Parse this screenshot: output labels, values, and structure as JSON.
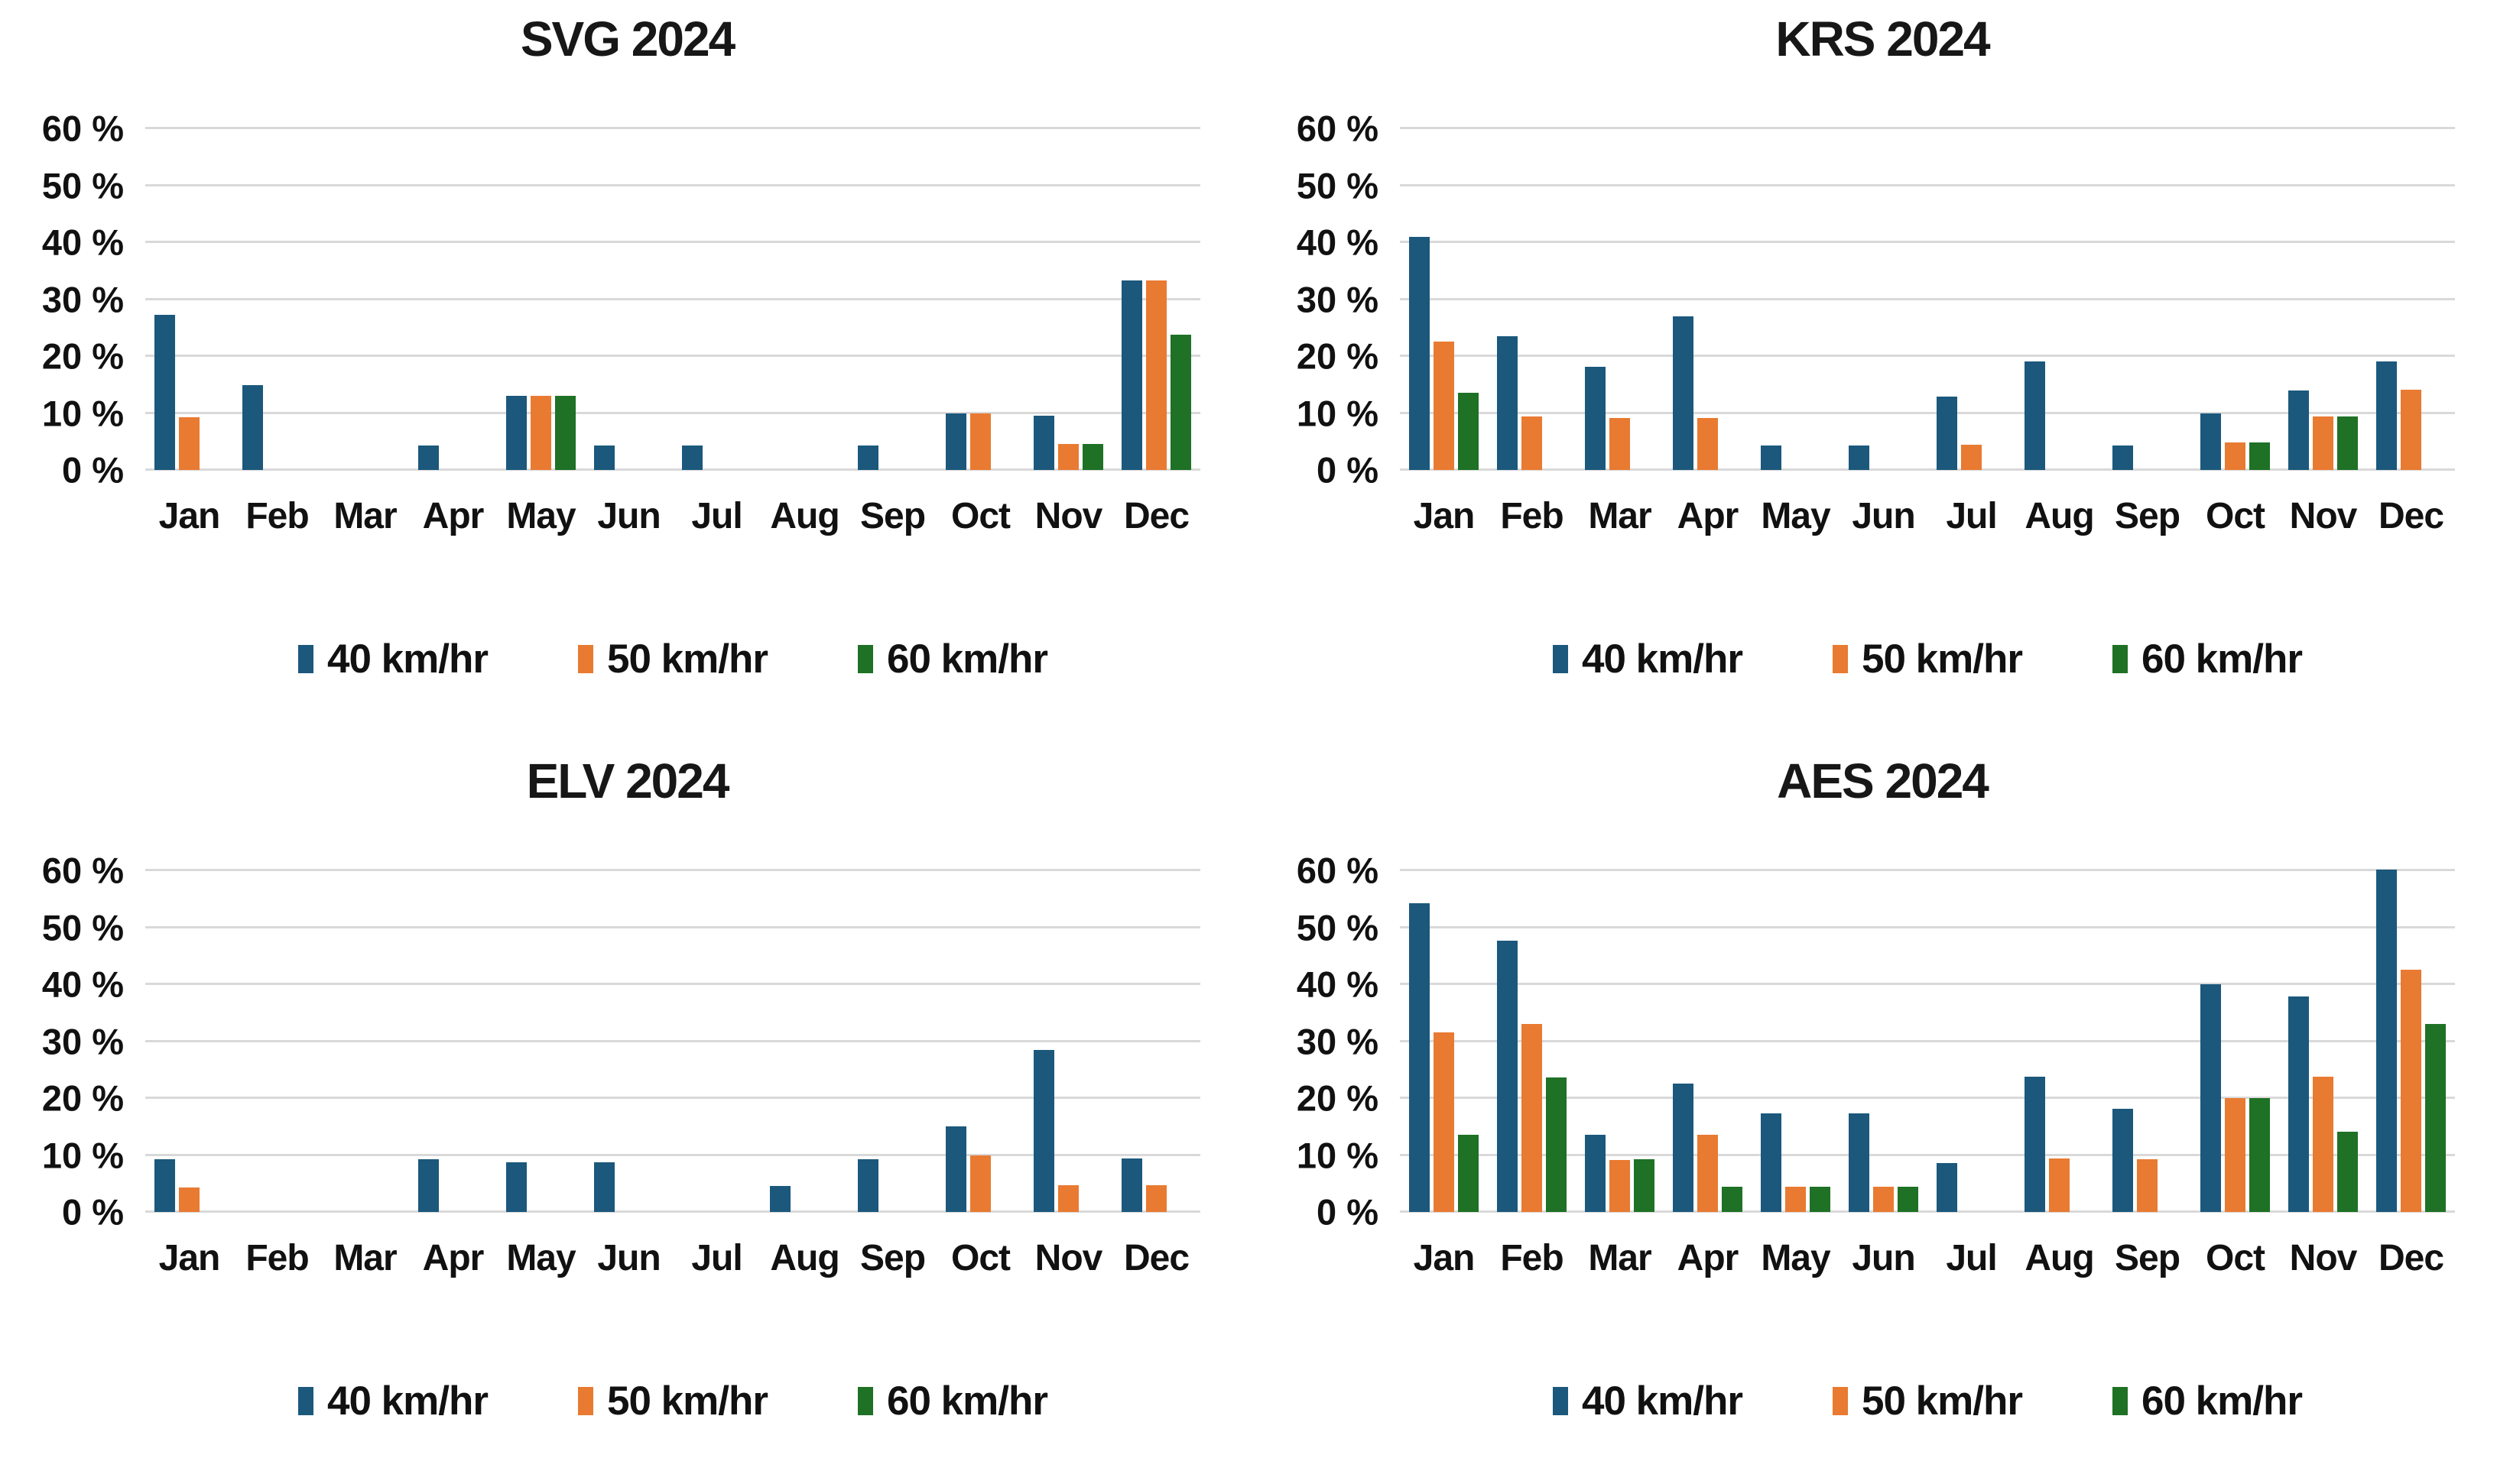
{
  "page": {
    "background": "#ffffff",
    "gridline_color": "#d9d9d9"
  },
  "yticks": [
    "0 %",
    "10 %",
    "20 %",
    "30 %",
    "40 %",
    "50 %",
    "60 %"
  ],
  "chart_data": [
    {
      "type": "bar",
      "title": "SVG 2024",
      "categories": [
        "Jan",
        "Feb",
        "Mar",
        "Apr",
        "May",
        "Jun",
        "Jul",
        "Aug",
        "Sep",
        "Oct",
        "Nov",
        "Dec"
      ],
      "series": [
        {
          "name": "40 km/hr",
          "color": "#1B587C",
          "values": [
            27.2,
            14.9,
            0,
            4.3,
            13.0,
            4.3,
            4.3,
            0,
            4.3,
            10.0,
            9.5,
            33.3
          ]
        },
        {
          "name": "50 km/hr",
          "color": "#E97A31",
          "values": [
            9.2,
            0,
            0,
            0,
            13.0,
            0,
            0,
            0,
            0,
            10.0,
            4.5,
            33.3
          ]
        },
        {
          "name": "60 km/hr",
          "color": "#1E7125",
          "values": [
            0,
            0,
            0,
            0,
            13.0,
            0,
            0,
            0,
            0,
            0,
            4.5,
            23.8
          ]
        }
      ],
      "ylim": [
        0,
        60
      ],
      "ytick_step": 10,
      "grid": true,
      "legend_position": "bottom"
    },
    {
      "type": "bar",
      "title": "KRS 2024",
      "categories": [
        "Jan",
        "Feb",
        "Mar",
        "Apr",
        "May",
        "Jun",
        "Jul",
        "Aug",
        "Sep",
        "Oct",
        "Nov",
        "Dec"
      ],
      "series": [
        {
          "name": "40 km/hr",
          "color": "#1B587C",
          "values": [
            41.0,
            23.5,
            18.1,
            27.0,
            4.3,
            4.3,
            12.9,
            19.0,
            4.3,
            10.0,
            14.0,
            19.0
          ]
        },
        {
          "name": "50 km/hr",
          "color": "#E97A31",
          "values": [
            22.5,
            9.4,
            9.1,
            9.1,
            0,
            0,
            4.4,
            0,
            0,
            4.9,
            9.4,
            14.1
          ]
        },
        {
          "name": "60 km/hr",
          "color": "#1E7125",
          "values": [
            13.5,
            0,
            0,
            0,
            0,
            0,
            0,
            0,
            0,
            4.9,
            9.4,
            0
          ]
        }
      ],
      "ylim": [
        0,
        60
      ],
      "ytick_step": 10,
      "grid": true,
      "legend_position": "bottom"
    },
    {
      "type": "bar",
      "title": "ELV 2024",
      "categories": [
        "Jan",
        "Feb",
        "Mar",
        "Apr",
        "May",
        "Jun",
        "Jul",
        "Aug",
        "Sep",
        "Oct",
        "Nov",
        "Dec"
      ],
      "series": [
        {
          "name": "40 km/hr",
          "color": "#1B587C",
          "values": [
            9.2,
            0,
            0,
            9.2,
            8.7,
            8.7,
            0,
            4.5,
            9.2,
            15.0,
            28.5,
            9.4
          ]
        },
        {
          "name": "50 km/hr",
          "color": "#E97A31",
          "values": [
            4.3,
            0,
            0,
            0,
            0,
            0,
            0,
            0,
            0,
            10.0,
            4.7,
            4.7
          ]
        },
        {
          "name": "60 km/hr",
          "color": "#1E7125",
          "values": [
            0,
            0,
            0,
            0,
            0,
            0,
            0,
            0,
            0,
            0,
            0,
            0
          ]
        }
      ],
      "ylim": [
        0,
        60
      ],
      "ytick_step": 10,
      "grid": true,
      "legend_position": "bottom"
    },
    {
      "type": "bar",
      "title": "AES 2024",
      "categories": [
        "Jan",
        "Feb",
        "Mar",
        "Apr",
        "May",
        "Jun",
        "Jul",
        "Aug",
        "Sep",
        "Oct",
        "Nov",
        "Dec"
      ],
      "series": [
        {
          "name": "40 km/hr",
          "color": "#1B587C",
          "values": [
            54.2,
            47.6,
            13.6,
            22.5,
            17.3,
            17.3,
            8.6,
            23.7,
            18.1,
            40.0,
            37.9,
            60.2
          ]
        },
        {
          "name": "50 km/hr",
          "color": "#E97A31",
          "values": [
            31.5,
            33.0,
            9.1,
            13.5,
            4.4,
            4.4,
            0,
            9.4,
            9.2,
            20.0,
            23.8,
            42.6
          ]
        },
        {
          "name": "60 km/hr",
          "color": "#1E7125",
          "values": [
            13.6,
            23.6,
            9.2,
            4.4,
            4.4,
            4.4,
            0,
            0,
            0,
            20.0,
            14.1,
            33.0
          ]
        }
      ],
      "ylim": [
        0,
        60
      ],
      "ytick_step": 10,
      "grid": true,
      "legend_position": "bottom"
    }
  ]
}
